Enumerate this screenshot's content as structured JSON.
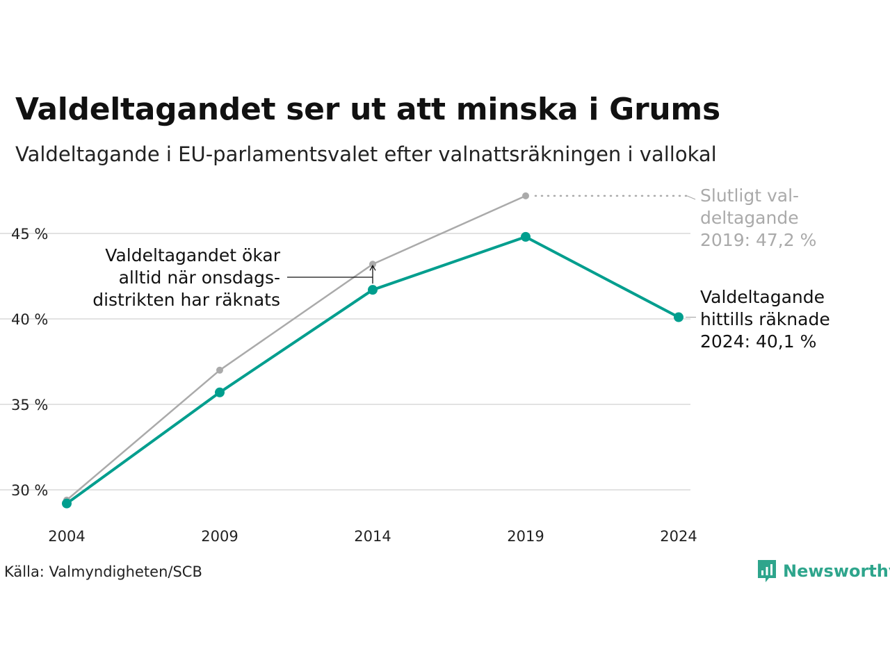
{
  "title": "Valdeltagandet ser ut att minska i Grums",
  "subtitle": "Valdeltagande i EU-parlamentsvalet efter valnattsräkningen i vallokal",
  "source": "Källa: Valmyndigheten/SCB",
  "brand": {
    "name": "Newsworthy",
    "icon": "newsworthy-logo-icon",
    "color": "#2ea58c"
  },
  "chart_data": {
    "type": "line",
    "x": [
      2004,
      2009,
      2014,
      2019,
      2024
    ],
    "x_tick_labels": [
      "2004",
      "2009",
      "2014",
      "2019",
      "2024"
    ],
    "y_ticks": [
      30,
      35,
      40,
      45
    ],
    "y_tick_labels": [
      "30 %",
      "35 %",
      "40 %",
      "45 %"
    ],
    "ylim": [
      28.5,
      47.5
    ],
    "grid": "horizontal",
    "series": [
      {
        "key": "final",
        "color": "#aaaaaa",
        "values": [
          29.4,
          37.0,
          43.2,
          47.2,
          null
        ]
      },
      {
        "key": "counted",
        "color": "#009e8e",
        "values": [
          29.2,
          35.7,
          41.7,
          44.8,
          40.1
        ]
      }
    ],
    "annotations": [
      {
        "key": "final",
        "lines": [
          "Slutligt val-",
          "deltagande",
          "2019: 47,2 %"
        ],
        "color": "#aaaaaa"
      },
      {
        "key": "counted",
        "lines": [
          "Valdeltagande",
          "hittills räknade",
          "2024: 40,1 %"
        ],
        "color": "#111111"
      },
      {
        "key": "wednesday",
        "lines": [
          "Valdeltagandet ökar",
          "alltid när onsdags-",
          "distrikten har räknats"
        ],
        "color": "#111111"
      }
    ]
  }
}
